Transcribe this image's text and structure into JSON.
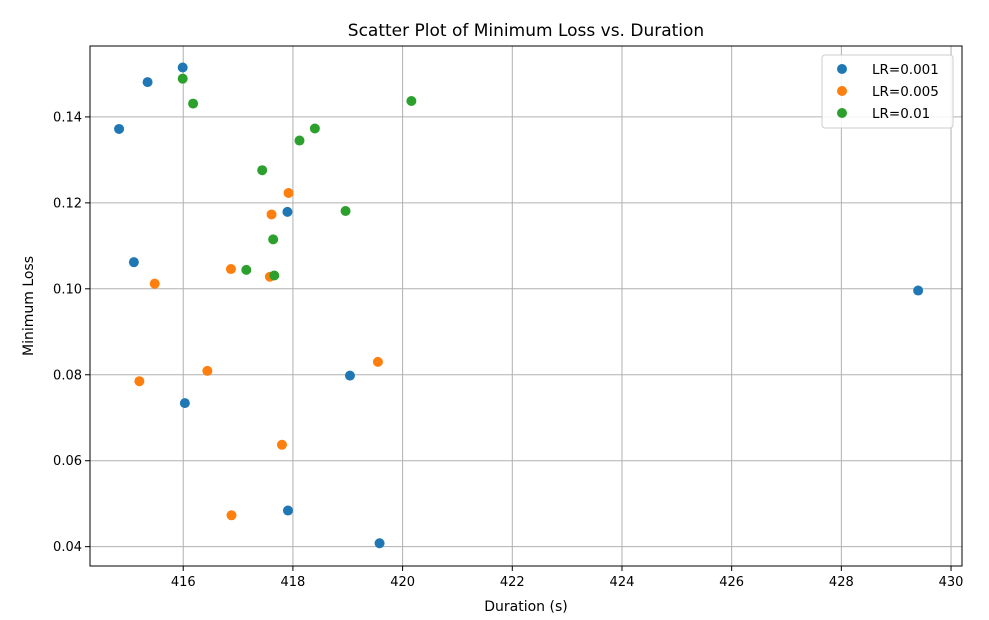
{
  "chart_data": {
    "type": "scatter",
    "title": "Scatter Plot of Minimum Loss vs. Duration",
    "xlabel": "Duration (s)",
    "ylabel": "Minimum Loss",
    "xlim": [
      414.3,
      430.2
    ],
    "ylim": [
      0.0355,
      0.1565
    ],
    "xticks": [
      416,
      418,
      420,
      422,
      424,
      426,
      428,
      430
    ],
    "yticks": [
      0.04,
      0.06,
      0.08,
      0.1,
      0.12,
      0.14
    ],
    "ytick_labels": [
      "0.04",
      "0.06",
      "0.08",
      "0.10",
      "0.12",
      "0.14"
    ],
    "grid": true,
    "legend_position": "top-right",
    "series": [
      {
        "name": "LR=0.001",
        "color": "#1f77b4",
        "points": [
          [
            414.83,
            0.1372
          ],
          [
            415.35,
            0.1481
          ],
          [
            415.99,
            0.1515
          ],
          [
            415.1,
            0.1062
          ],
          [
            416.03,
            0.0734
          ],
          [
            417.9,
            0.1179
          ],
          [
            417.91,
            0.0484
          ],
          [
            419.04,
            0.0798
          ],
          [
            419.58,
            0.0408
          ],
          [
            429.4,
            0.0996
          ]
        ]
      },
      {
        "name": "LR=0.005",
        "color": "#ff7f0e",
        "points": [
          [
            415.2,
            0.0785
          ],
          [
            415.48,
            0.1012
          ],
          [
            416.44,
            0.0809
          ],
          [
            416.87,
            0.1046
          ],
          [
            416.88,
            0.0473
          ],
          [
            417.61,
            0.1173
          ],
          [
            417.58,
            0.1028
          ],
          [
            417.8,
            0.0637
          ],
          [
            417.92,
            0.1223
          ],
          [
            419.55,
            0.083
          ]
        ]
      },
      {
        "name": "LR=0.01",
        "color": "#2ca02c",
        "points": [
          [
            415.99,
            0.1489
          ],
          [
            416.18,
            0.1431
          ],
          [
            417.15,
            0.1044
          ],
          [
            417.44,
            0.1276
          ],
          [
            417.64,
            0.1115
          ],
          [
            417.66,
            0.1031
          ],
          [
            418.12,
            0.1345
          ],
          [
            418.4,
            0.1373
          ],
          [
            418.96,
            0.1181
          ],
          [
            420.16,
            0.1437
          ]
        ]
      }
    ]
  }
}
